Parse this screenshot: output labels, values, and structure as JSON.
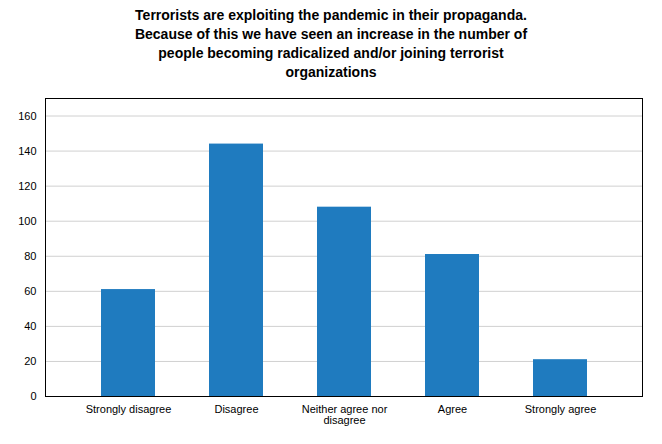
{
  "chart_data": {
    "type": "bar",
    "title": "Terrorists are exploiting the pandemic in their propaganda.\nBecause of this we have seen an increase in the number of\npeople becoming radicalized and/or joining terrorist\norganizations",
    "categories": [
      "Strongly disagree",
      "Disagree",
      "Neither agree nor\ndisagree",
      "Agree",
      "Strongly agree"
    ],
    "values": [
      61,
      144,
      108,
      81,
      21
    ],
    "color": "#1f7bbf",
    "ylim": [
      0,
      170
    ],
    "yticks": [
      0,
      20,
      40,
      60,
      80,
      100,
      120,
      140,
      160
    ],
    "grid": true
  }
}
